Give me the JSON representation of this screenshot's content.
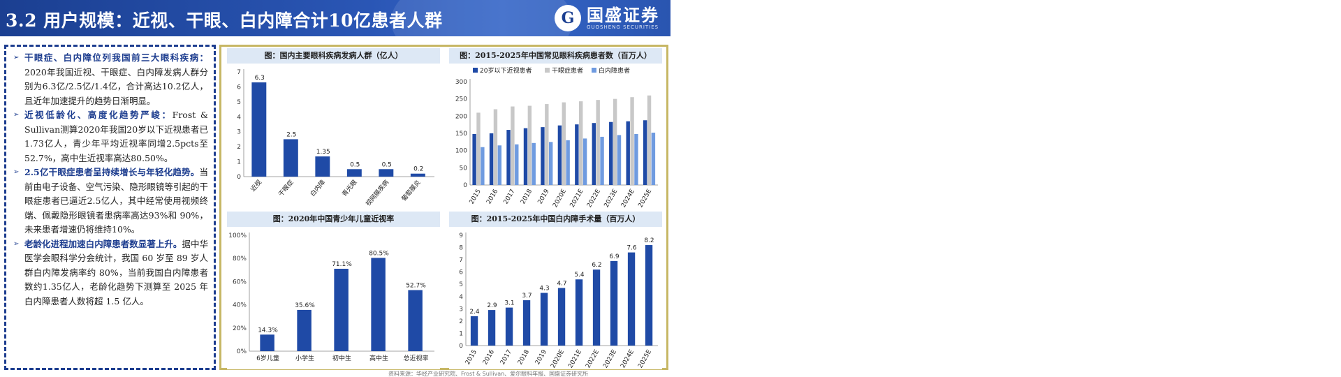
{
  "header": {
    "title": "3.2 用户规模：近视、干眼、白内障合计10亿患者人群",
    "logo_mark": "G",
    "logo_cn": "国盛证券",
    "logo_en": "GUOSHENG SECURITIES"
  },
  "text": {
    "paragraphs": [
      {
        "lead": "干眼症、白内障位列我国前三大眼科疾病：",
        "body": "2020年我国近视、干眼症、白内障发病人群分别为6.3亿/2.5亿/1.4亿，合计高达10.2亿人，且近年加速提升的趋势日渐明显。"
      },
      {
        "lead": "近视低龄化、高度化趋势严峻：",
        "body": "Frost & Sullivan测算2020年我国20岁以下近视患者已1.73亿人，青少年平均近视率同增2.5pcts至52.7%，高中生近视率高达80.50%。"
      },
      {
        "lead": "2.5亿干眼症患者呈持续增长与年轻化趋势。",
        "body": "当前由电子设备、空气污染、隐形眼镜等引起的干眼症患者已逼近2.5亿人，其中经常使用视频终端、佩戴隐形眼镜者患病率高达93%和 90%，未来患者增速仍将维持10%。"
      },
      {
        "lead": "老龄化进程加速白内障患者数显著上升。",
        "body": "据中华医学会眼科学分会统计，我国 60 岁至 89 岁人群白内障发病率约 80%，当前我国白内障患者数约1.35亿人，老龄化趋势下测算至 2025 年白内障患者人数将超 1.5 亿人。"
      }
    ]
  },
  "footer": {
    "source": "资料来源：华经产业研究院、Frost & Sullivan、爱尔眼科年报、国盛证券研究所"
  },
  "colors": {
    "bar_dark": "#1f4aa6",
    "bar_grey": "#c8c8c8",
    "bar_light": "#6f9be0",
    "frame": "#c7b765"
  },
  "chart_data": [
    {
      "type": "bar",
      "title": "图：国内主要眼科疾病发病人群（亿人）",
      "categories": [
        "近视",
        "干眼症",
        "白内障",
        "青光眼",
        "视网膜疾病",
        "葡萄膜炎"
      ],
      "values": [
        6.3,
        2.5,
        1.35,
        0.5,
        0.5,
        0.2
      ],
      "value_labels": [
        "6.3",
        "2.5",
        "1.35",
        "0.5",
        "0.5",
        "0.2"
      ],
      "ylim": [
        0,
        7
      ],
      "yticks": [
        "0",
        "1",
        "2",
        "3",
        "4",
        "5",
        "6",
        "7"
      ]
    },
    {
      "type": "bar",
      "title": "图：2015-2025年中国常见眼科疾病患者数（百万人）",
      "categories": [
        "2015",
        "2016",
        "2017",
        "2018",
        "2019",
        "2020E",
        "2021E",
        "2022E",
        "2023E",
        "2024E",
        "2025E"
      ],
      "series": [
        {
          "name": "20岁以下近视患者",
          "values": [
            148,
            150,
            160,
            165,
            168,
            173,
            176,
            180,
            183,
            185,
            188
          ]
        },
        {
          "name": "干眼症患者",
          "values": [
            210,
            220,
            228,
            230,
            235,
            240,
            243,
            247,
            250,
            255,
            260
          ]
        },
        {
          "name": "白内障患者",
          "values": [
            110,
            115,
            118,
            122,
            125,
            130,
            135,
            140,
            145,
            148,
            152
          ]
        }
      ],
      "ylim": [
        0,
        300
      ],
      "yticks": [
        "0",
        "50",
        "100",
        "150",
        "200",
        "250",
        "300"
      ]
    },
    {
      "type": "bar",
      "title": "图：2020年中国青少年儿童近视率",
      "categories": [
        "6岁儿童",
        "小学生",
        "初中生",
        "高中生",
        "总近视率"
      ],
      "values": [
        14.3,
        35.6,
        71.1,
        80.5,
        52.7
      ],
      "value_labels": [
        "14.3%",
        "35.6%",
        "71.1%",
        "80.5%",
        "52.7%"
      ],
      "ylim": [
        0,
        100
      ],
      "yticks": [
        "0%",
        "20%",
        "40%",
        "60%",
        "80%",
        "100%"
      ]
    },
    {
      "type": "bar",
      "title": "图：2015-2025年中国白内障手术量（百万人）",
      "categories": [
        "2015",
        "2016",
        "2017",
        "2018",
        "2019",
        "2020E",
        "2021E",
        "2022E",
        "2023E",
        "2024E",
        "2025E"
      ],
      "values": [
        2.4,
        2.9,
        3.1,
        3.7,
        4.3,
        4.7,
        5.4,
        6.2,
        6.9,
        7.6,
        8.2
      ],
      "value_labels": [
        "2.4",
        "2.9",
        "3.1",
        "3.7",
        "4.3",
        "4.7",
        "5.4",
        "6.2",
        "6.9",
        "7.6",
        "8.2"
      ],
      "ylim": [
        0,
        9
      ],
      "yticks": [
        "0",
        "1",
        "2",
        "3",
        "4",
        "5",
        "6",
        "7",
        "8",
        "9"
      ]
    }
  ]
}
